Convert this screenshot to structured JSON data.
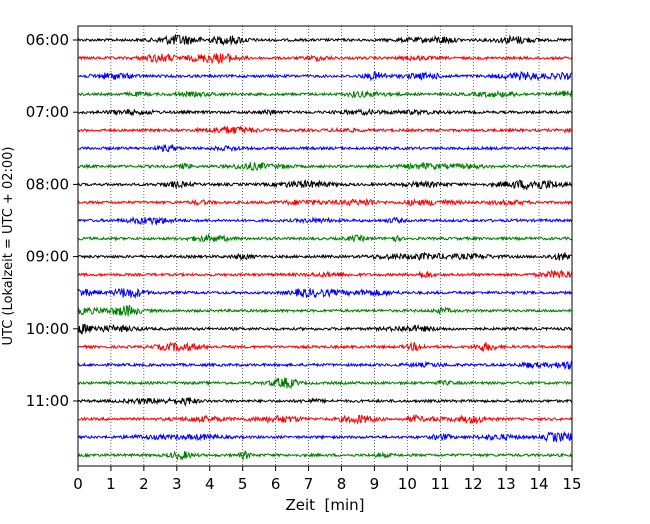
{
  "chart_data": {
    "type": "line",
    "title": "",
    "xlabel": "Zeit  [min]",
    "ylabel": "UTC (Lokalzeit = UTC + 02:00)",
    "xlim": [
      0,
      15
    ],
    "x_ticks": [
      0,
      1,
      2,
      3,
      4,
      5,
      6,
      7,
      8,
      9,
      10,
      11,
      12,
      13,
      14,
      15
    ],
    "x_tick_labels": [
      "0",
      "1",
      "2",
      "3",
      "4",
      "5",
      "6",
      "7",
      "8",
      "9",
      "10",
      "11",
      "12",
      "13",
      "14",
      "15"
    ],
    "vertical_grid": "dotted",
    "y_tick_labels": [
      "06:00",
      "07:00",
      "08:00",
      "09:00",
      "10:00",
      "11:00"
    ],
    "trace_interval_minutes": 15,
    "colors": [
      "#000000",
      "#ff0000",
      "#0000ff",
      "#008000"
    ],
    "traces": [
      {
        "start": "06:00",
        "color": "#000000"
      },
      {
        "start": "06:15",
        "color": "#ff0000"
      },
      {
        "start": "06:30",
        "color": "#0000ff"
      },
      {
        "start": "06:45",
        "color": "#008000"
      },
      {
        "start": "07:00",
        "color": "#000000"
      },
      {
        "start": "07:15",
        "color": "#ff0000"
      },
      {
        "start": "07:30",
        "color": "#0000ff"
      },
      {
        "start": "07:45",
        "color": "#008000"
      },
      {
        "start": "08:00",
        "color": "#000000"
      },
      {
        "start": "08:15",
        "color": "#ff0000"
      },
      {
        "start": "08:30",
        "color": "#0000ff"
      },
      {
        "start": "08:45",
        "color": "#008000"
      },
      {
        "start": "09:00",
        "color": "#000000"
      },
      {
        "start": "09:15",
        "color": "#ff0000"
      },
      {
        "start": "09:30",
        "color": "#0000ff"
      },
      {
        "start": "09:45",
        "color": "#008000"
      },
      {
        "start": "10:00",
        "color": "#000000"
      },
      {
        "start": "10:15",
        "color": "#ff0000"
      },
      {
        "start": "10:30",
        "color": "#0000ff"
      },
      {
        "start": "10:45",
        "color": "#008000"
      },
      {
        "start": "11:00",
        "color": "#000000"
      },
      {
        "start": "11:15",
        "color": "#ff0000"
      },
      {
        "start": "11:30",
        "color": "#0000ff"
      },
      {
        "start": "11:45",
        "color": "#008000"
      }
    ]
  }
}
